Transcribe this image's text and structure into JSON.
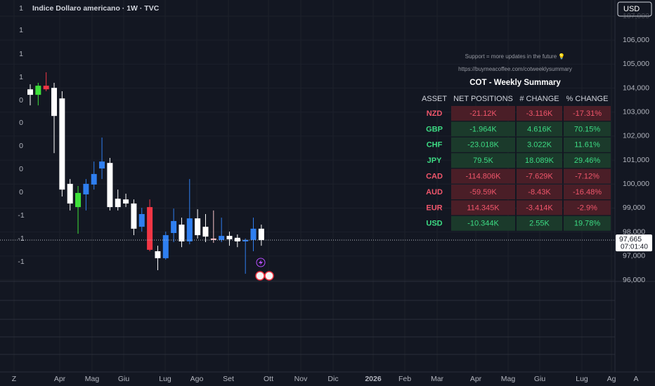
{
  "header": {
    "title": "Indice Dollaro americano · 1W · TVC",
    "currency": "USD"
  },
  "left_axis": [
    "1",
    "1",
    "1",
    "1",
    "0",
    "0",
    "0",
    "0",
    "0",
    "-1",
    "-1",
    "-1"
  ],
  "price_axis": [
    {
      "value": 107000,
      "label": "107,000"
    },
    {
      "value": 106000,
      "label": "106,000"
    },
    {
      "value": 105000,
      "label": "105,000"
    },
    {
      "value": 104000,
      "label": "104,000"
    },
    {
      "value": 103000,
      "label": "103,000"
    },
    {
      "value": 102000,
      "label": "102,000"
    },
    {
      "value": 101000,
      "label": "101,000"
    },
    {
      "value": 100000,
      "label": "100,000"
    },
    {
      "value": 99000,
      "label": "99,000"
    },
    {
      "value": 98000,
      "label": "98,000"
    },
    {
      "value": 97000,
      "label": "97,000"
    },
    {
      "value": 96000,
      "label": "96,000"
    }
  ],
  "current_price": {
    "value": 97665,
    "label": "97,665",
    "countdown": "07:01:40"
  },
  "time_axis": [
    "Z",
    "Apr",
    "Mag",
    "Giu",
    "Lug",
    "Ago",
    "Set",
    "Ott",
    "Nov",
    "Dic",
    "2026",
    "Feb",
    "Mar",
    "Apr",
    "Mag",
    "Giu",
    "Lug",
    "Ag",
    "A"
  ],
  "candles": [
    {
      "o": 103950,
      "h": 104160,
      "l": 103280,
      "c": 103720,
      "color": "#ffffff"
    },
    {
      "o": 103720,
      "h": 104220,
      "l": 103280,
      "c": 104100,
      "color": "#3ee03a"
    },
    {
      "o": 104100,
      "h": 104660,
      "l": 103870,
      "c": 103950,
      "color": "#f23645"
    },
    {
      "o": 104010,
      "h": 104220,
      "l": 101290,
      "c": 102840,
      "color": "#ffffff"
    },
    {
      "o": 103570,
      "h": 103870,
      "l": 99480,
      "c": 99770,
      "color": "#ffffff"
    },
    {
      "o": 100010,
      "h": 100210,
      "l": 98900,
      "c": 99190,
      "color": "#ffffff"
    },
    {
      "o": 99040,
      "h": 99920,
      "l": 97930,
      "c": 99630,
      "color": "#3ee03a"
    },
    {
      "o": 99570,
      "h": 100210,
      "l": 98900,
      "c": 100010,
      "color": "#2f7ff0"
    },
    {
      "o": 99980,
      "h": 100940,
      "l": 99770,
      "c": 100420,
      "color": "#2f7ff0"
    },
    {
      "o": 100650,
      "h": 101940,
      "l": 100210,
      "c": 100940,
      "color": "#2f7ff0"
    },
    {
      "o": 100880,
      "h": 101090,
      "l": 98900,
      "c": 99040,
      "color": "#ffffff"
    },
    {
      "o": 99390,
      "h": 99770,
      "l": 98900,
      "c": 99040,
      "color": "#ffffff"
    },
    {
      "o": 99360,
      "h": 99600,
      "l": 99040,
      "c": 99190,
      "color": "#ffffff"
    },
    {
      "o": 99190,
      "h": 99360,
      "l": 97870,
      "c": 98140,
      "color": "#ffffff"
    },
    {
      "o": 98220,
      "h": 99010,
      "l": 98020,
      "c": 98750,
      "color": "#2f7ff0"
    },
    {
      "o": 99040,
      "h": 99360,
      "l": 97200,
      "c": 97260,
      "color": "#f23645"
    },
    {
      "o": 97200,
      "h": 97430,
      "l": 96410,
      "c": 96910,
      "color": "#ffffff"
    },
    {
      "o": 96910,
      "h": 98020,
      "l": 96850,
      "c": 97870,
      "color": "#2f7ff0"
    },
    {
      "o": 97960,
      "h": 98980,
      "l": 97580,
      "c": 98460,
      "color": "#2f7ff0"
    },
    {
      "o": 98310,
      "h": 98600,
      "l": 97370,
      "c": 97610,
      "color": "#ffffff"
    },
    {
      "o": 97610,
      "h": 100210,
      "l": 97490,
      "c": 98570,
      "color": "#2f7ff0"
    },
    {
      "o": 98570,
      "h": 98950,
      "l": 97730,
      "c": 97870,
      "color": "#ffffff"
    },
    {
      "o": 98220,
      "h": 98750,
      "l": 97580,
      "c": 97810,
      "color": "#ffffff"
    },
    {
      "o": 97730,
      "h": 98900,
      "l": 97550,
      "c": 97670,
      "color": "#f7c4c9"
    },
    {
      "o": 97670,
      "h": 98600,
      "l": 97580,
      "c": 97840,
      "color": "#2f7ff0"
    },
    {
      "o": 97840,
      "h": 98020,
      "l": 97430,
      "c": 97700,
      "color": "#ffffff"
    },
    {
      "o": 97760,
      "h": 97900,
      "l": 97370,
      "c": 97610,
      "color": "#ffffff"
    },
    {
      "o": 97610,
      "h": 97730,
      "l": 96260,
      "c": 97670,
      "color": "#2f7ff0"
    },
    {
      "o": 97670,
      "h": 98600,
      "l": 97200,
      "c": 98140,
      "color": "#2f7ff0"
    },
    {
      "o": 98140,
      "h": 98310,
      "l": 97430,
      "c": 97665,
      "color": "#ffffff"
    }
  ],
  "panel": {
    "support": "Support = more updates in the future 💡",
    "url": "https://buymeacoffee.com/cotweeklysummary",
    "table": {
      "title": "COT - Weekly Summary",
      "headers": [
        "ASSET",
        "NET POSITIONS",
        "# CHANGE",
        "% CHANGE"
      ],
      "rows": [
        [
          "NZD",
          "-21.12K",
          "-3.116K",
          "-17.31%"
        ],
        [
          "GBP",
          "-1.964K",
          "4.616K",
          "70.15%"
        ],
        [
          "CHF",
          "-23.018K",
          "3.022K",
          "11.61%"
        ],
        [
          "JPY",
          "79.5K",
          "18.089K",
          "29.46%"
        ],
        [
          "CAD",
          "-114.806K",
          "-7.629K",
          "-7.12%"
        ],
        [
          "AUD",
          "-59.59K",
          "-8.43K",
          "-16.48%"
        ],
        [
          "EUR",
          "114.345K",
          "-3.414K",
          "-2.9%"
        ],
        [
          "USD",
          "-10.344K",
          "2.55K",
          "19.78%"
        ]
      ],
      "row_trend": [
        "down",
        "up",
        "up",
        "up",
        "down",
        "down",
        "down",
        "up"
      ]
    }
  }
}
